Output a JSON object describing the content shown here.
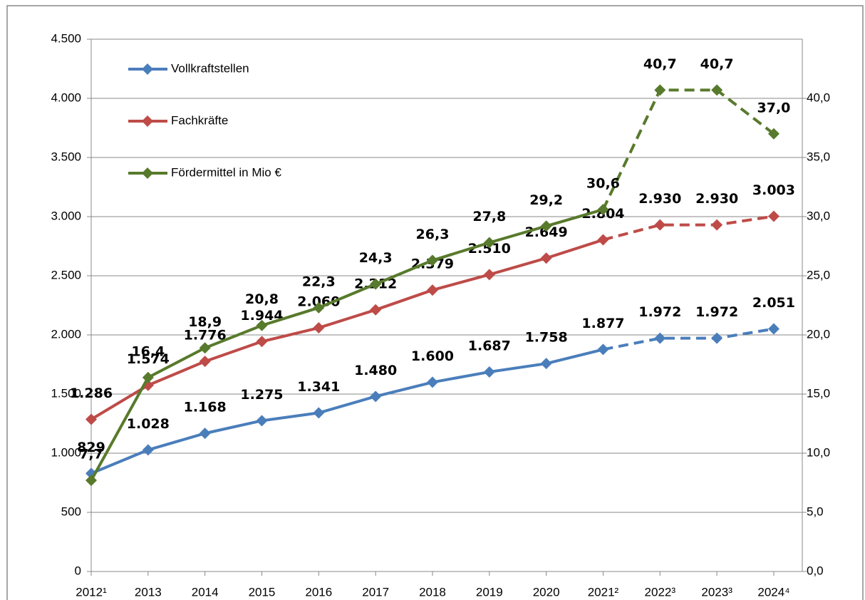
{
  "chart_data": {
    "type": "line",
    "categories": [
      "2012¹",
      "2013",
      "2014",
      "2015",
      "2016",
      "2017",
      "2018",
      "2019",
      "2020",
      "2021²",
      "2022³",
      "2023³",
      "2024⁴"
    ],
    "series": [
      {
        "name": "Vollkraftstellen",
        "color": "#4a7ebb",
        "axis": "y",
        "values": [
          829,
          1028,
          1168,
          1275,
          1341,
          1480,
          1600,
          1687,
          1758,
          1877,
          1972,
          1972,
          2051
        ],
        "value_labels": [
          "829",
          "1.028",
          "1.168",
          "1.275",
          "1.341",
          "1.480",
          "1.600",
          "1.687",
          "1.758",
          "1.877",
          "1.972",
          "1.972",
          "2.051"
        ]
      },
      {
        "name": "Fachkräfte",
        "color": "#be4b48",
        "axis": "y",
        "values": [
          1286,
          1574,
          1776,
          1944,
          2060,
          2212,
          2379,
          2510,
          2649,
          2804,
          2930,
          2930,
          3003
        ],
        "value_labels": [
          "1.286",
          "1.574",
          "1.776",
          "1.944",
          "2.060",
          "2.212",
          "2.379",
          "2.510",
          "2.649",
          "2.804",
          "2.930",
          "2.930",
          "3.003"
        ]
      },
      {
        "name": "Fördermittel in Mio €",
        "color": "#587a2c",
        "axis": "y2",
        "values": [
          7.7,
          16.4,
          18.9,
          20.8,
          22.3,
          24.3,
          26.3,
          27.8,
          29.2,
          30.6,
          40.7,
          40.7,
          37.0
        ],
        "value_labels": [
          "7,7",
          "16,4",
          "18,9",
          "20,8",
          "22,3",
          "24,3",
          "26,3",
          "27,8",
          "29,2",
          "30,6",
          "40,7",
          "40,7",
          "37,0"
        ]
      }
    ],
    "dashed_from": "2021²",
    "ylim": [
      0,
      4500
    ],
    "yticks": [
      0,
      500,
      {
        "value": 1000,
        "label": "1.000"
      },
      {
        "value": 1500,
        "label": "1.500"
      },
      {
        "value": 2000,
        "label": "2.000"
      },
      {
        "value": 2500,
        "label": "2.500"
      },
      {
        "value": 3000,
        "label": "3.000"
      },
      {
        "value": 3500,
        "label": "3.500"
      },
      {
        "value": 4000,
        "label": "4.000"
      },
      {
        "value": 4500,
        "label": "4.500"
      }
    ],
    "y2lim": [
      0,
      45
    ],
    "y2ticks": [
      {
        "value": 0,
        "label": "0,0"
      },
      {
        "value": 5,
        "label": "5,0"
      },
      {
        "value": 10,
        "label": "10,0"
      },
      {
        "value": 15,
        "label": "15,0"
      },
      {
        "value": 20,
        "label": "20,0"
      },
      {
        "value": 25,
        "label": "25,0"
      },
      {
        "value": 30,
        "label": "30,0"
      },
      {
        "value": 35,
        "label": "35,0"
      },
      {
        "value": 40,
        "label": "40,0"
      }
    ],
    "grid": true,
    "legend": "upper left"
  }
}
